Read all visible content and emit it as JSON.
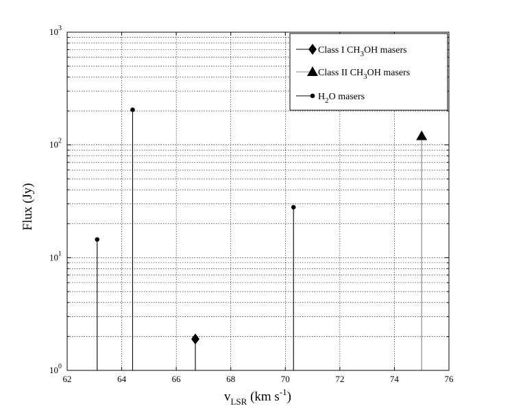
{
  "chart_data": {
    "type": "scatter",
    "xlabel_parts": [
      "v",
      "LSR",
      " (km s",
      "-1",
      ")"
    ],
    "ylabel": "Flux (Jy)",
    "xlim": [
      62,
      76
    ],
    "ylim": [
      1,
      1000
    ],
    "yscale": "log",
    "grid": true,
    "legend_position": "top-right",
    "x_ticks": [
      "62",
      "64",
      "66",
      "68",
      "70",
      "72",
      "74",
      "76"
    ],
    "y_ticks": [
      {
        "value": 1,
        "base": "10",
        "exp": "0"
      },
      {
        "value": 10,
        "base": "10",
        "exp": "1"
      },
      {
        "value": 100,
        "base": "10",
        "exp": "2"
      },
      {
        "value": 1000,
        "base": "10",
        "exp": "3"
      }
    ],
    "series": [
      {
        "name_parts": [
          "Class I CH",
          "3",
          "OH masers"
        ],
        "marker": "diamond",
        "color": "#000000",
        "stem_color": "#000000",
        "points": [
          {
            "x": 66.7,
            "y": 1.9
          }
        ]
      },
      {
        "name_parts": [
          "Class II CH",
          "3",
          "OH masers"
        ],
        "marker": "triangle",
        "color": "#000000",
        "stem_color": "#808080",
        "points": [
          {
            "x": 75.0,
            "y": 120
          }
        ]
      },
      {
        "name_parts": [
          "H",
          "2",
          "O masers"
        ],
        "marker": "dot",
        "color": "#000000",
        "stem_color": "#000000",
        "points": [
          {
            "x": 63.1,
            "y": 14.5
          },
          {
            "x": 64.4,
            "y": 205
          },
          {
            "x": 70.3,
            "y": 28
          }
        ]
      }
    ]
  }
}
